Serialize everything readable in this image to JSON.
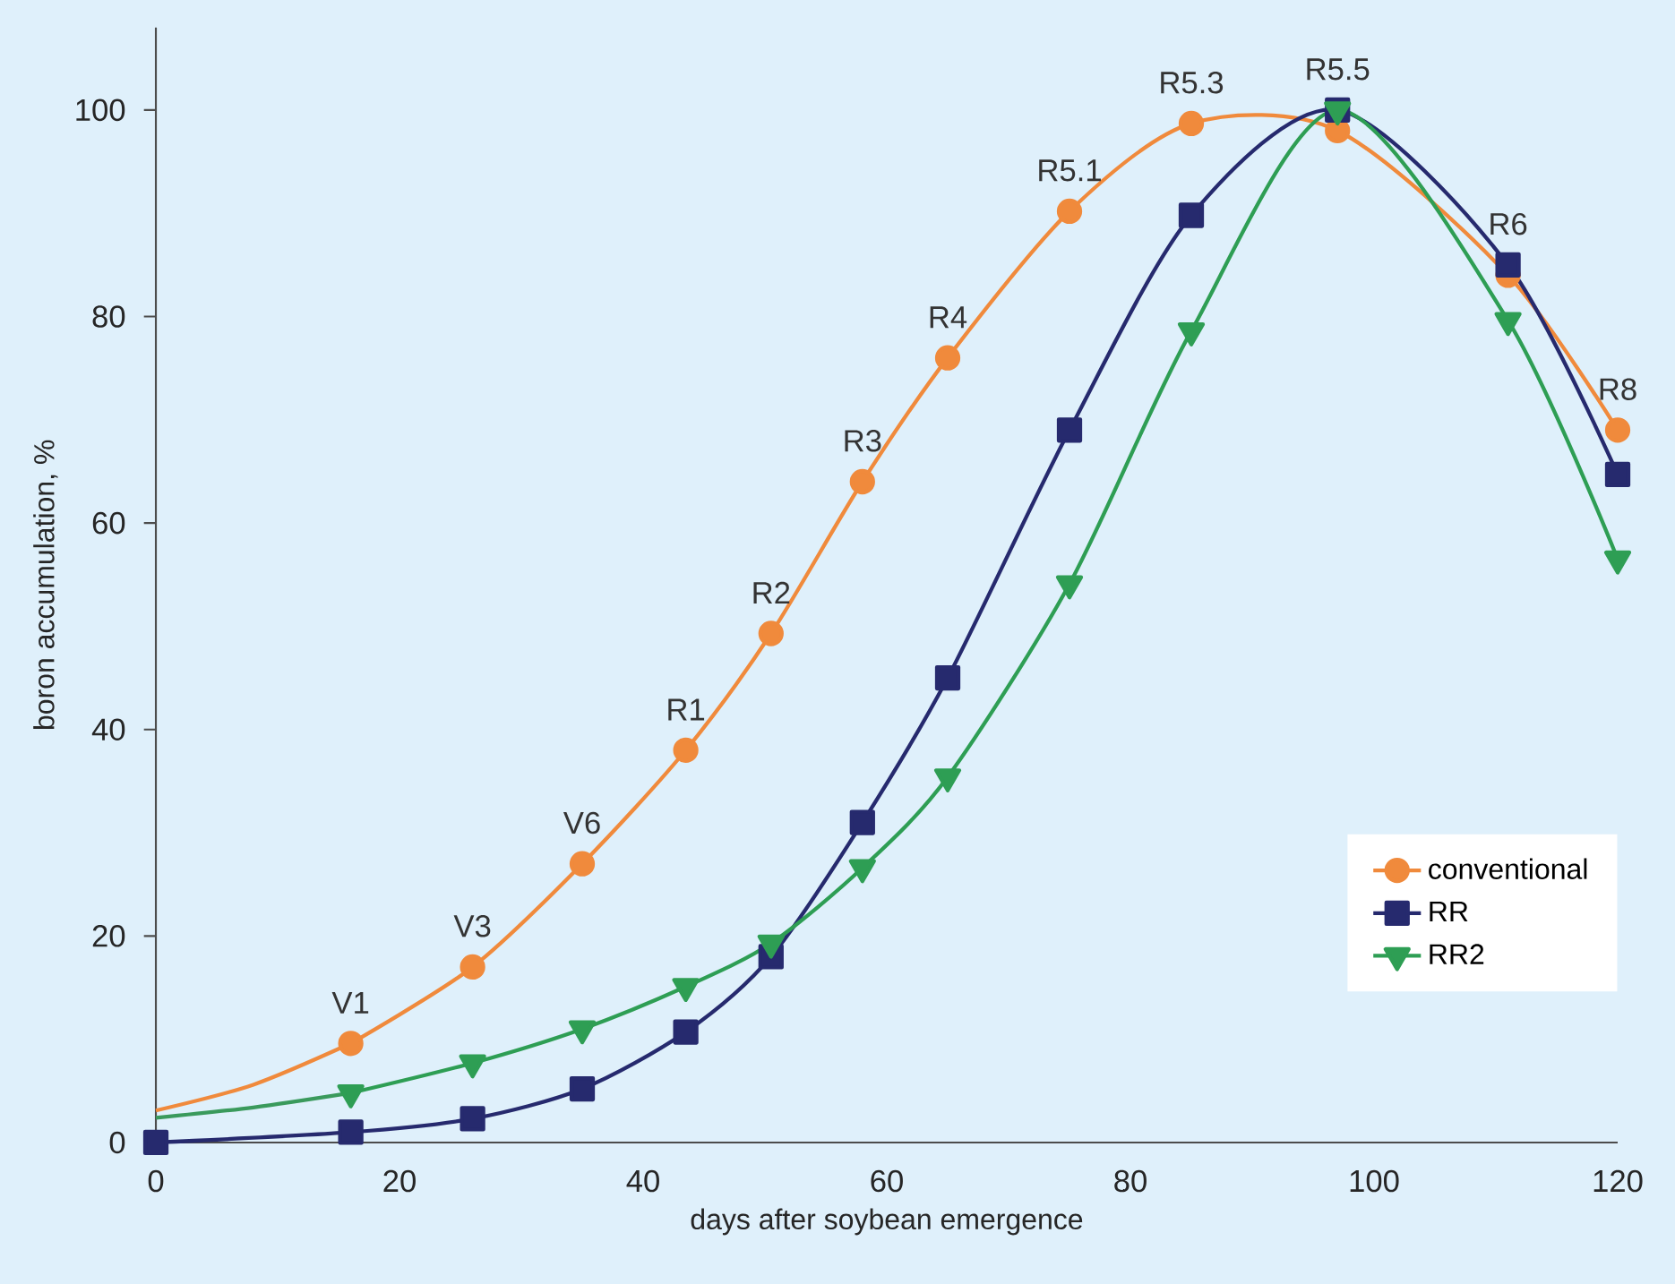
{
  "chart_data": {
    "type": "line",
    "xlabel": "days after soybean emergence",
    "ylabel": "boron accumulation, %",
    "xlim": [
      0,
      120
    ],
    "ylim": [
      0,
      108
    ],
    "xticks": [
      0,
      20,
      40,
      60,
      80,
      100,
      120
    ],
    "yticks": [
      0,
      20,
      40,
      60,
      80,
      100
    ],
    "legend": "bottom right",
    "grid": false,
    "series": [
      {
        "type": "line",
        "marker": "none",
        "color": "#f08a3c",
        "x": [
          0,
          8,
          16
        ],
        "values": [
          3.1,
          5.6,
          9.6
        ]
      },
      {
        "type": "line",
        "marker": "none",
        "color": "#3a9a5c",
        "x": [
          0,
          8,
          16
        ],
        "values": [
          2.4,
          3.4,
          4.8
        ]
      },
      {
        "name": "conventional",
        "marker": "circle",
        "color": "#f08a3c",
        "x": [
          16,
          26,
          35,
          43.5,
          50.5,
          58,
          65,
          75,
          85,
          97,
          111,
          120
        ],
        "values": [
          9.6,
          17.0,
          27.0,
          38.0,
          49.3,
          64.0,
          76.0,
          90.2,
          98.7,
          98.0,
          84.0,
          69.0
        ]
      },
      {
        "name": "RR",
        "marker": "square",
        "color": "#262a6e",
        "x": [
          0,
          16,
          26,
          35,
          43.5,
          50.5,
          58,
          65,
          75,
          85,
          97,
          111,
          120
        ],
        "values": [
          0,
          1.0,
          2.3,
          5.2,
          10.7,
          18.0,
          31.0,
          45.0,
          69.0,
          89.8,
          100,
          85.0,
          64.7
        ]
      },
      {
        "name": "RR2",
        "marker": "triangle",
        "color": "#2e9e54",
        "x": [
          16,
          26,
          35,
          43.5,
          50.5,
          58,
          65,
          75,
          85,
          97,
          111,
          120
        ],
        "values": [
          4.8,
          7.7,
          11.0,
          15.1,
          19.3,
          26.6,
          35.4,
          54.1,
          78.6,
          100,
          79.6,
          56.5
        ]
      }
    ],
    "annotations": [
      {
        "text": "V1",
        "x": 16,
        "y": 9.6
      },
      {
        "text": "V3",
        "x": 26,
        "y": 17.0
      },
      {
        "text": "V6",
        "x": 35,
        "y": 27.0
      },
      {
        "text": "R1",
        "x": 43.5,
        "y": 38.0
      },
      {
        "text": "R2",
        "x": 50.5,
        "y": 49.3
      },
      {
        "text": "R3",
        "x": 58,
        "y": 64.0
      },
      {
        "text": "R4",
        "x": 65,
        "y": 76.0
      },
      {
        "text": "R5.1",
        "x": 75,
        "y": 90.2
      },
      {
        "text": "R5.3",
        "x": 85,
        "y": 98.7
      },
      {
        "text": "R5.5",
        "x": 97,
        "y": 100
      },
      {
        "text": "R6",
        "x": 111,
        "y": 85.0
      },
      {
        "text": "R8",
        "x": 120,
        "y": 69.0
      }
    ]
  }
}
